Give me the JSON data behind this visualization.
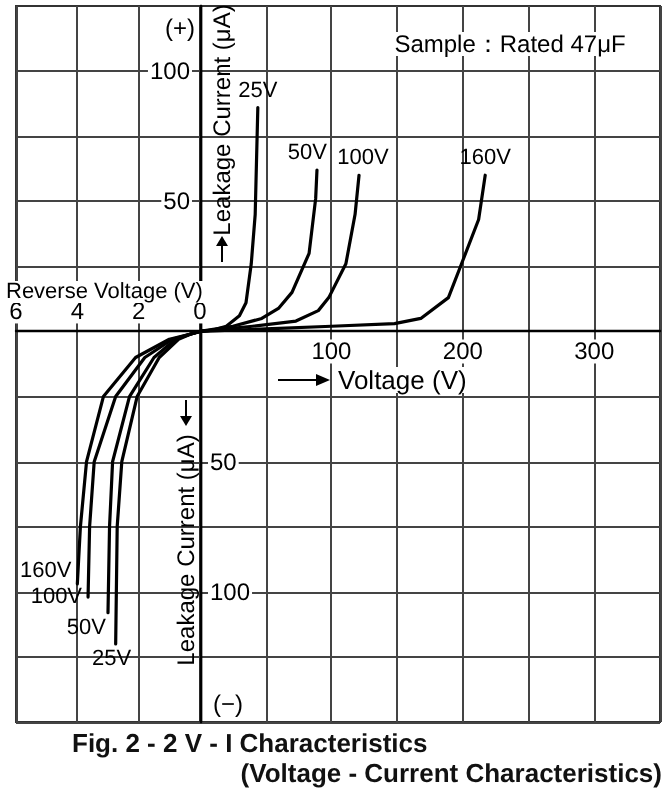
{
  "chart_data": [
    {
      "type": "line",
      "title": "Fig. 2 - 2   V - I  Characteristics",
      "xlabel": "Reverse Voltage (V)",
      "ylabel": "Leakage Current (μA)",
      "annotations": [
        "(+)"
      ],
      "xlim": [
        6,
        0
      ],
      "xticks": [
        6,
        4,
        2,
        0
      ],
      "ylim": [
        -150,
        125
      ],
      "yticks": [
        {
          "value": -150,
          "label": null
        },
        {
          "value": -125,
          "label": null
        },
        {
          "value": -100,
          "label": null
        },
        {
          "value": -75,
          "label": null
        },
        {
          "value": -50,
          "label": null
        },
        {
          "value": -25,
          "label": null
        },
        {
          "value": 0,
          "label": null
        },
        {
          "value": 25,
          "label": null
        },
        {
          "value": 50,
          "label": "50"
        },
        {
          "value": 75,
          "label": null
        },
        {
          "value": 100,
          "label": "100"
        }
      ],
      "grid": true,
      "marker": "none",
      "series": [
        {
          "name": "25V",
          "color": "#000000",
          "x": [
            0,
            0.3,
            0.7,
            1.33,
            2.05,
            2.55,
            2.7,
            2.75
          ],
          "values": [
            0,
            -1,
            -3,
            -10,
            -25,
            -50,
            -75,
            -120
          ]
        },
        {
          "name": "50V",
          "color": "#000000",
          "x": [
            0,
            0.3,
            0.8,
            1.5,
            2.3,
            2.85,
            2.95,
            3.0
          ],
          "values": [
            0,
            -1,
            -3,
            -10,
            -25,
            -50,
            -75,
            -108
          ]
        },
        {
          "name": "100V",
          "color": "#000000",
          "x": [
            0,
            0.3,
            0.9,
            1.8,
            2.75,
            3.45,
            3.6,
            3.65
          ],
          "values": [
            0,
            -1,
            -3,
            -10,
            -25,
            -50,
            -75,
            -102
          ]
        },
        {
          "name": "160V",
          "color": "#000000",
          "x": [
            0,
            0.3,
            1.0,
            2.1,
            3.15,
            3.7,
            3.9,
            4.0
          ],
          "values": [
            0,
            -1,
            -3,
            -10,
            -25,
            -50,
            -75,
            -97
          ]
        }
      ]
    },
    {
      "type": "line",
      "subtitle": "(Voltage - Current Characteristics)",
      "xlabel": "Voltage (V)",
      "ylabel": "Leakage Current (μA)",
      "annotations": [
        "Sample：Rated 47μF",
        "(−)"
      ],
      "xlim": [
        0,
        350
      ],
      "xticks": [
        {
          "value": 0,
          "label": null
        },
        {
          "value": 50,
          "label": null
        },
        100,
        {
          "value": 150,
          "label": null
        },
        200,
        {
          "value": 250,
          "label": null
        },
        300,
        {
          "value": 350,
          "label": null
        }
      ],
      "ylim": [
        -150,
        125
      ],
      "yticks": [
        {
          "value": -150,
          "label": null
        },
        {
          "value": -125,
          "label": null
        },
        {
          "value": -100,
          "label": "100"
        },
        {
          "value": -75,
          "label": null
        },
        {
          "value": -50,
          "label": "50"
        },
        {
          "value": -25,
          "label": null
        },
        {
          "value": 0,
          "label": null
        },
        {
          "value": 25,
          "label": null
        },
        {
          "value": 50,
          "label": null
        },
        {
          "value": 75,
          "label": null
        },
        {
          "value": 100,
          "label": null
        }
      ],
      "grid": true,
      "marker": "none",
      "series": [
        {
          "name": "25V",
          "color": "#000000",
          "x": [
            0,
            10,
            20,
            30,
            35,
            39,
            42,
            44
          ],
          "values": [
            0,
            0.5,
            2,
            6,
            11,
            26,
            45,
            86
          ]
        },
        {
          "name": "50V",
          "color": "#000000",
          "x": [
            0,
            25,
            47,
            60,
            70,
            83,
            88,
            89
          ],
          "values": [
            0,
            2,
            5,
            9,
            15,
            30,
            51,
            62
          ]
        },
        {
          "name": "100V",
          "color": "#000000",
          "x": [
            0,
            40,
            73,
            90,
            98,
            111,
            118,
            121
          ],
          "values": [
            0,
            2,
            4,
            8,
            13,
            26,
            45,
            60
          ]
        },
        {
          "name": "160V",
          "color": "#000000",
          "x": [
            0,
            50,
            100,
            148,
            168,
            189,
            199,
            212,
            217
          ],
          "values": [
            0,
            1,
            2,
            3,
            5,
            13,
            26,
            43,
            60
          ]
        }
      ]
    }
  ]
}
